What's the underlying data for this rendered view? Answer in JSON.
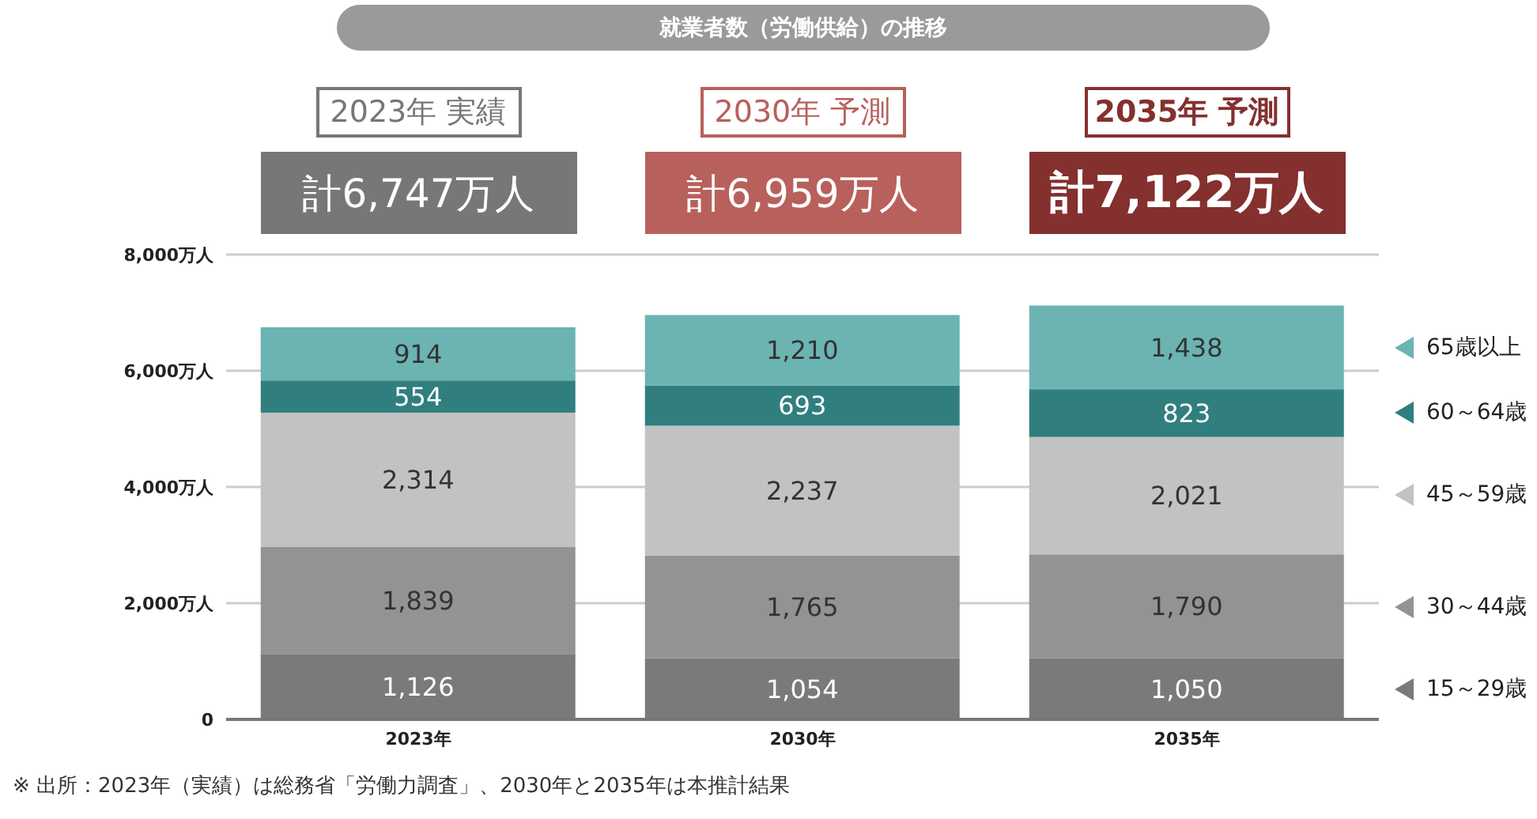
{
  "chart_data": {
    "type": "bar",
    "title": "就業者数（労働供給）の推移",
    "categories": [
      "2023年",
      "2030年",
      "2035年"
    ],
    "stacked": true,
    "series": [
      {
        "name": "15～29歳",
        "color": "#7a7a7a",
        "values": [
          1126,
          1054,
          1050
        ],
        "value_labels": [
          "1,126",
          "1,054",
          "1,050"
        ]
      },
      {
        "name": "30～44歳",
        "color": "#939393",
        "values": [
          1839,
          1765,
          1790
        ],
        "value_labels": [
          "1,839",
          "1,765",
          "1,790"
        ]
      },
      {
        "name": "45～59歳",
        "color": "#c2c2c2",
        "values": [
          2314,
          2237,
          2021
        ],
        "value_labels": [
          "2,314",
          "2,237",
          "2,021"
        ]
      },
      {
        "name": "60～64歳",
        "color": "#307f7e",
        "values": [
          554,
          693,
          823
        ],
        "value_labels": [
          "554",
          "693",
          "823"
        ]
      },
      {
        "name": "65歳以上",
        "color": "#6bb4b2",
        "values": [
          914,
          1210,
          1438
        ],
        "value_labels": [
          "914",
          "1,210",
          "1,438"
        ]
      }
    ],
    "ylim": [
      0,
      8000
    ],
    "yticks": [
      0,
      {
        "value": 2000,
        "label": "2,000万人"
      },
      {
        "value": 4000,
        "label": "4,000万人"
      },
      {
        "value": 6000,
        "label": "6,000万人"
      },
      {
        "value": 8000,
        "label": "8,000万人"
      }
    ],
    "grid": "y",
    "legend": "right",
    "totals": [
      "計6,747万人",
      "計6,959万人",
      "計7,122万人"
    ],
    "annotations": [
      "2023年 実績",
      "2030年 予測",
      "2035年 予測",
      "※ 出所：2023年（実績）は総務省「労働力調査」、2030年と2035年は本推計結果"
    ]
  }
}
